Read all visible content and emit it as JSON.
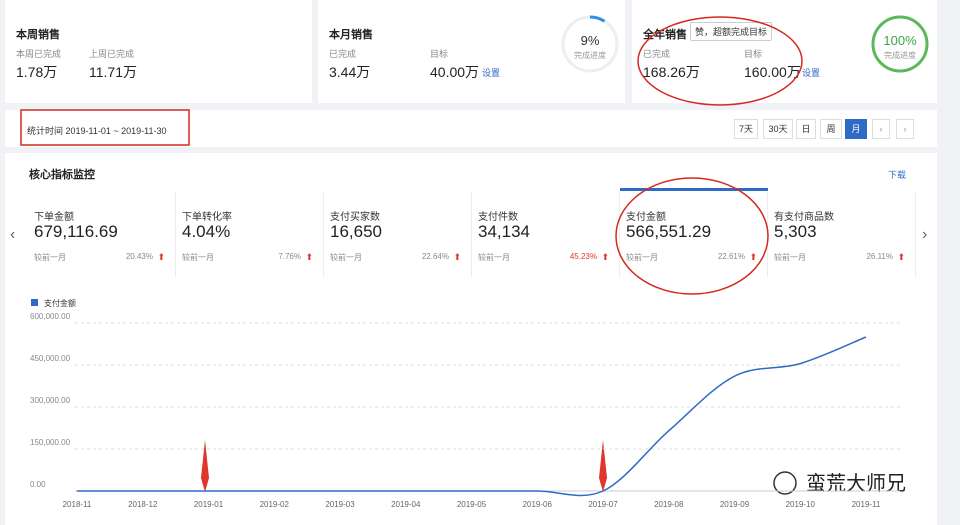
{
  "cards": [
    {
      "title": "本周销售",
      "items": [
        {
          "label": "本周已完成",
          "value": "1.78万"
        },
        {
          "label": "上周已完成",
          "value": "11.71万"
        }
      ]
    },
    {
      "title": "本月销售",
      "items": [
        {
          "label": "已完成",
          "value": "3.44万"
        },
        {
          "label": "目标",
          "value": "40.00万",
          "link": "设置"
        }
      ],
      "progress": {
        "value": 9,
        "label": "9%"
      },
      "progress_label": "完成进度"
    },
    {
      "title": "全年销售",
      "badge": "赞，超额完成目标",
      "items": [
        {
          "label": "已完成",
          "value": "168.26万"
        },
        {
          "label": "目标",
          "value": "160.00万",
          "link": "设置"
        }
      ],
      "progress": {
        "value": 100,
        "label": "100%"
      },
      "progress_label": "完成进度"
    }
  ],
  "filter": {
    "label": "统计时间 2019-11-01 ~ 2019-11-30",
    "buttons": [
      "7天",
      "30天",
      "日",
      "周",
      "月"
    ]
  },
  "panel": {
    "title": "核心指标监控",
    "download": "下载",
    "metrics": [
      {
        "label": "下单金额",
        "value": "679,116.69",
        "compare": "较前一月",
        "change": "20.43%"
      },
      {
        "label": "下单转化率",
        "value": "4.04%",
        "compare": "较前一月",
        "change": "7.76%"
      },
      {
        "label": "支付买家数",
        "value": "16,650",
        "compare": "较前一月",
        "change": "22.64%"
      },
      {
        "label": "支付件数",
        "value": "34,134",
        "compare": "较前一月",
        "change": "45.23%"
      },
      {
        "label": "支付金额",
        "value": "566,551.29",
        "compare": "较前一月",
        "change": "22.61%"
      },
      {
        "label": "有支付商品数",
        "value": "5,303",
        "compare": "较前一月",
        "change": "26.11%"
      }
    ]
  },
  "chart_data": {
    "type": "line",
    "categories": [
      "2018-11",
      "2018-12",
      "2019-01",
      "2019-02",
      "2019-03",
      "2019-04",
      "2019-05",
      "2019-06",
      "2019-07",
      "2019-08",
      "2019-09",
      "2019-10",
      "2019-11"
    ],
    "series": [
      {
        "name": "支付金额",
        "color": "#2f6bc6",
        "values": [
          0,
          0,
          0,
          0,
          0,
          0,
          0,
          0,
          0,
          215000,
          410000,
          455000,
          550000
        ]
      }
    ],
    "ylim": [
      0,
      600000
    ],
    "yticks": [
      {
        "value": 0,
        "label": "0.00"
      },
      {
        "value": 150000,
        "label": "150,000.00"
      },
      {
        "value": 300000,
        "label": "300,000.00"
      },
      {
        "value": 450000,
        "label": "450,000.00"
      },
      {
        "value": 600000,
        "label": "600,000.00"
      }
    ],
    "grid": true
  },
  "watermark": "蛮荒大师兄"
}
